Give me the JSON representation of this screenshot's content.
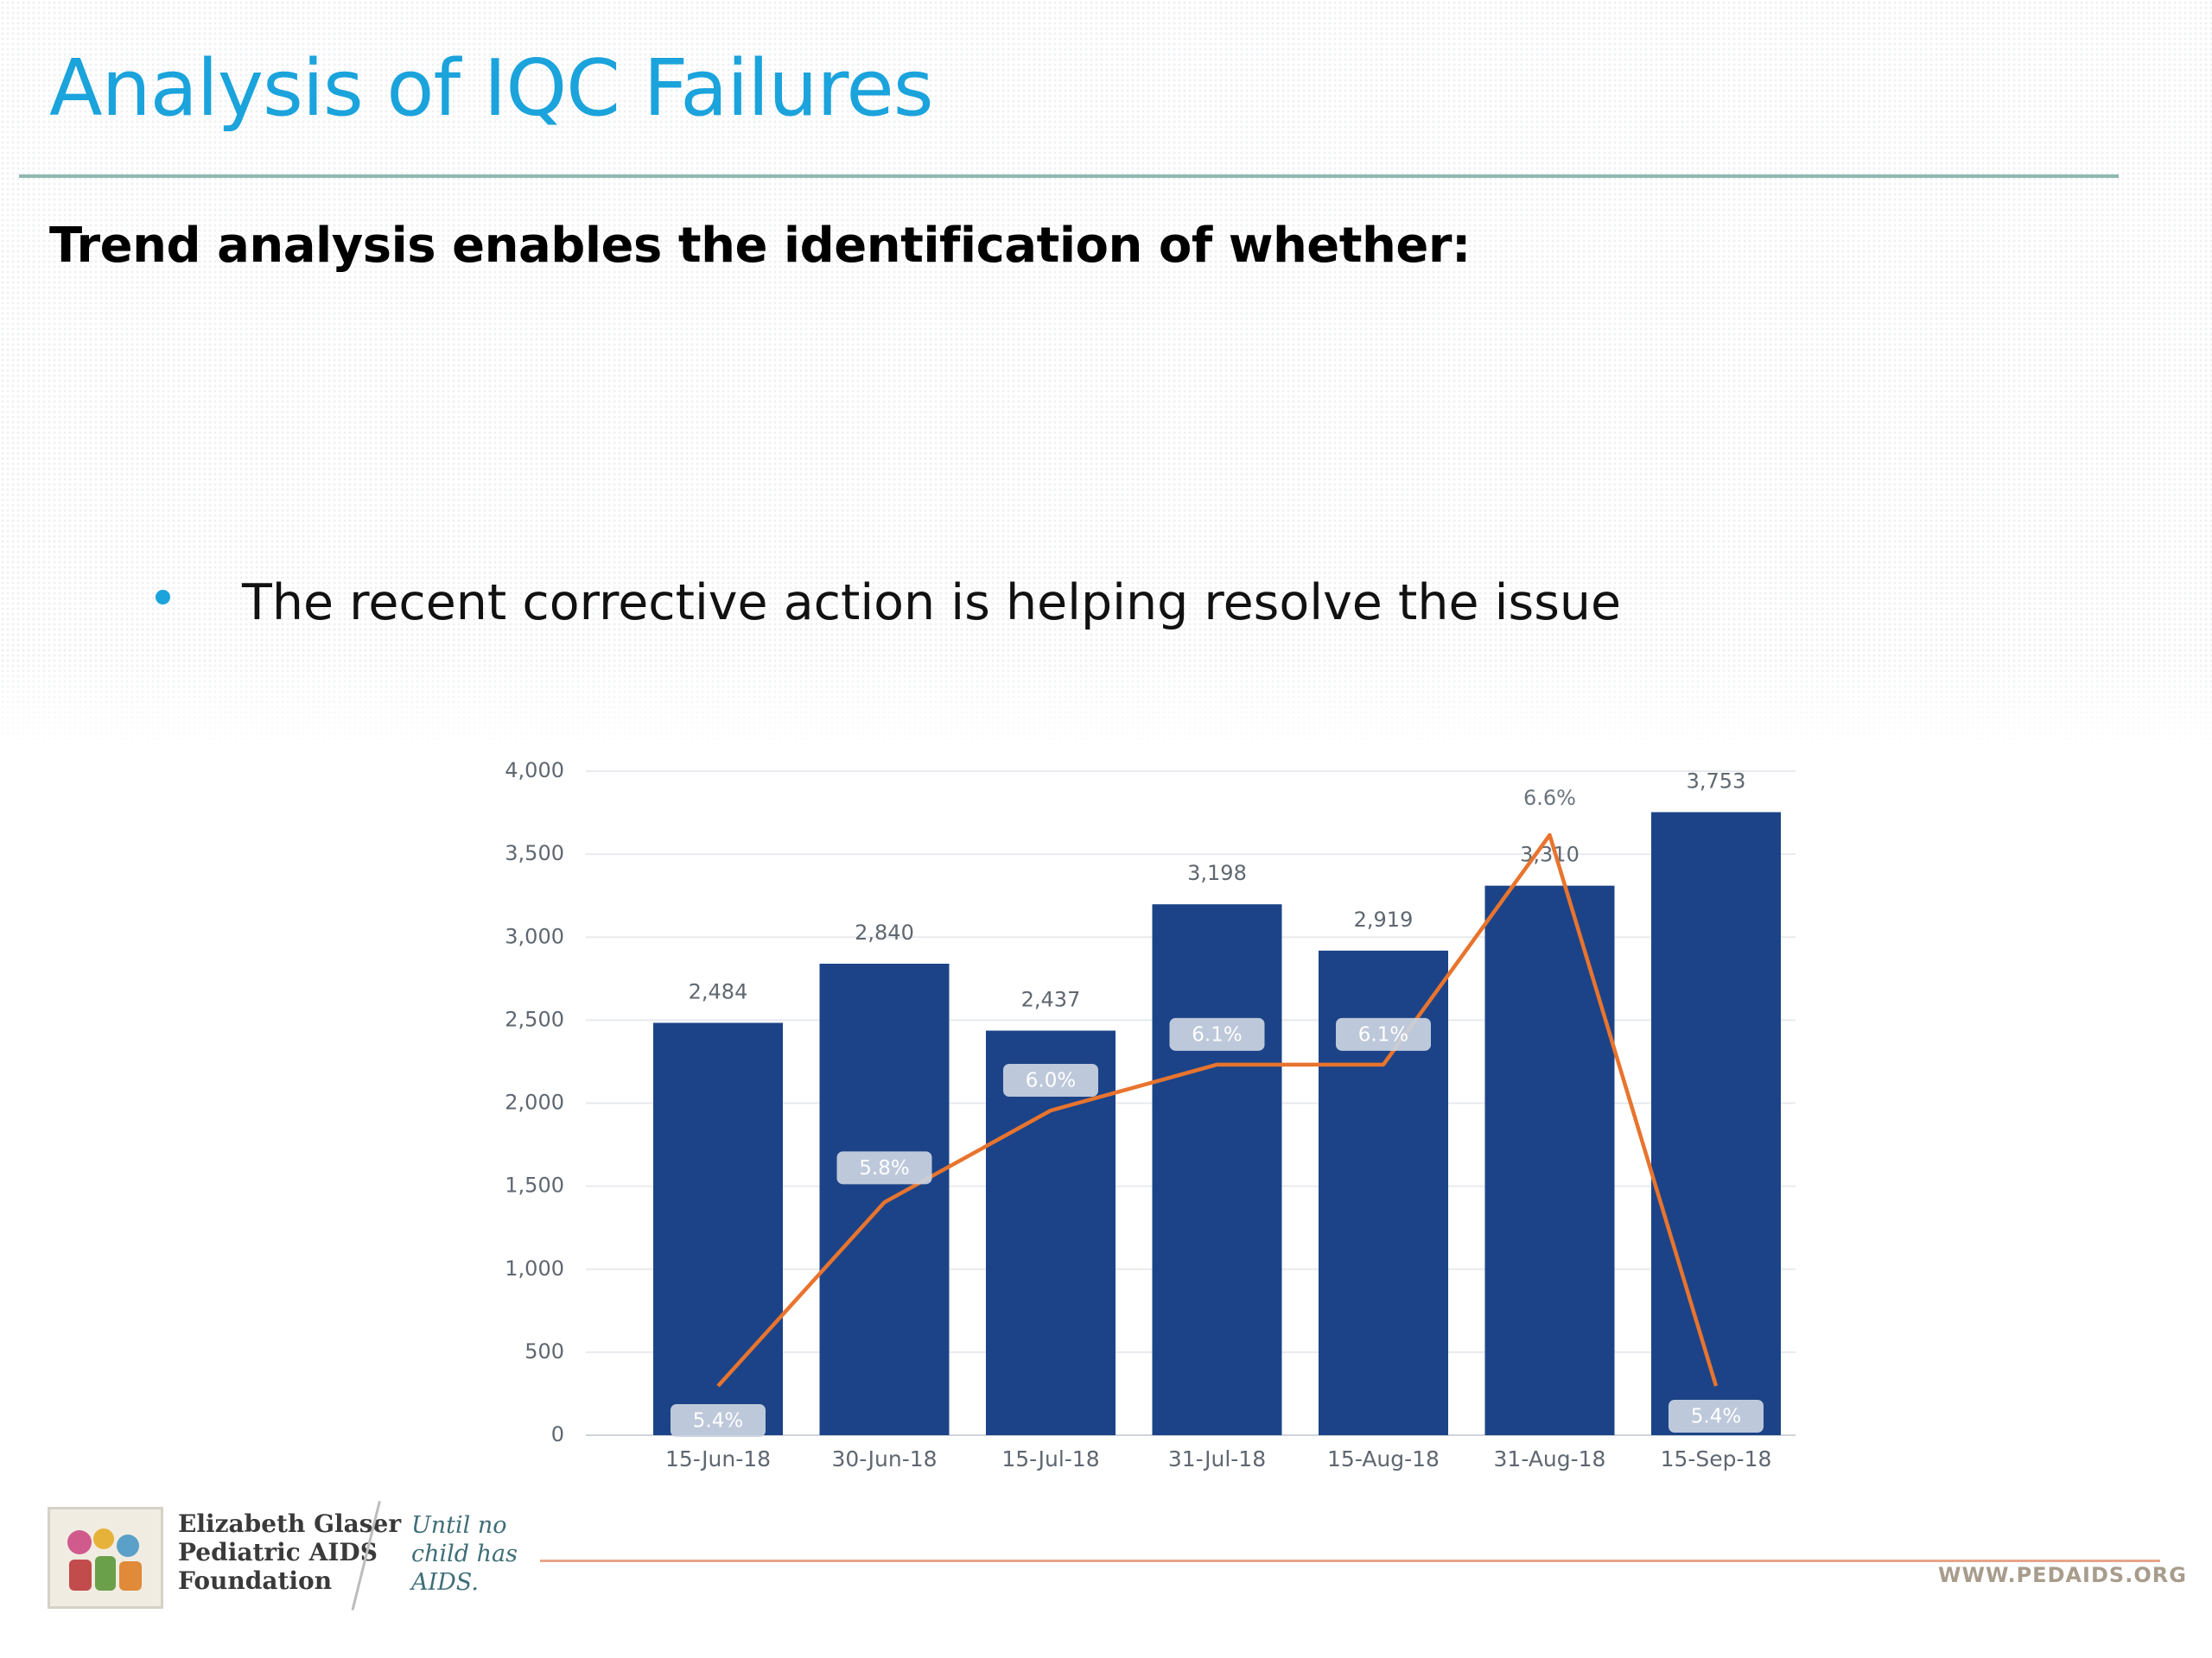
{
  "slide": {
    "title": "Analysis of IQC Failures",
    "subtitle": "Trend analysis enables the identification of whether:",
    "bullets": [
      "The recent corrective action is helping resolve the issue"
    ]
  },
  "footer": {
    "org_name_lines": [
      "Elizabeth Glaser",
      "Pediatric AIDS",
      "Foundation"
    ],
    "tagline_lines": [
      "Until no",
      "child has",
      "AIDS."
    ],
    "url": "WWW.PEDAIDS.ORG"
  },
  "colors": {
    "title": "#1ba3dc",
    "bar": "#1c4387",
    "line": "#e8742e",
    "badge": "#c9d3e0"
  },
  "chart_data": {
    "type": "bar",
    "categories": [
      "15-Jun-18",
      "30-Jun-18",
      "15-Jul-18",
      "31-Jul-18",
      "15-Aug-18",
      "31-Aug-18",
      "15-Sep-18"
    ],
    "series": [
      {
        "type": "bar",
        "values": [
          2484,
          2840,
          2437,
          3198,
          2919,
          3310,
          3753
        ],
        "labels": [
          "2,484",
          "2,840",
          "2,437",
          "3,198",
          "2,919",
          "3,310",
          "3,753"
        ]
      },
      {
        "type": "line",
        "values": [
          5.4,
          5.8,
          6.0,
          6.1,
          6.1,
          6.6,
          5.4
        ],
        "labels": [
          "5.4%",
          "5.8%",
          "6.0%",
          "6.1%",
          "6.1%",
          "6.6%",
          "5.4%"
        ],
        "axis": "secondary"
      }
    ],
    "y_ticks": [
      "0",
      "500",
      "1,000",
      "1,500",
      "2,000",
      "2,500",
      "3,000",
      "3,500",
      "4,000"
    ],
    "ylim": [
      0,
      4000
    ],
    "grid": true,
    "legend": "none"
  }
}
